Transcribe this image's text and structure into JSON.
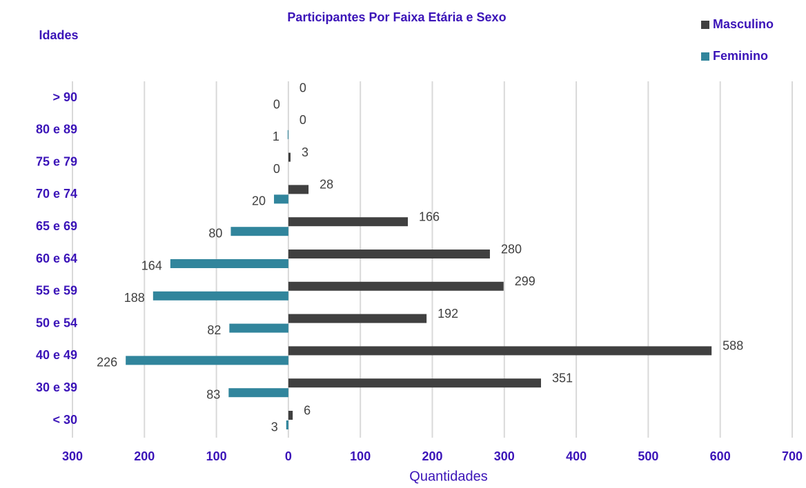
{
  "chart_data": {
    "type": "bar",
    "orientation": "horizontal",
    "title": "Participantes Por Faixa Etária e Sexo",
    "y_label": "Idades",
    "x_label": "Quantidades",
    "categories": [
      "> 90",
      "80 e 89",
      "75 e 79",
      "70 e 74",
      "65 e 69",
      "60 e 64",
      "55 e 59",
      "50 e 54",
      "40 e 49",
      "30 e 39",
      "< 30"
    ],
    "series": [
      {
        "name": "Masculino",
        "color": "#404040",
        "values": [
          0,
          0,
          3,
          28,
          166,
          280,
          299,
          192,
          588,
          351,
          6
        ]
      },
      {
        "name": "Feminino",
        "color": "#31859c",
        "mirrored": true,
        "values": [
          0,
          1,
          0,
          20,
          80,
          164,
          188,
          82,
          226,
          83,
          3
        ]
      }
    ],
    "xlim": [
      -300,
      700
    ],
    "xticks": [
      {
        "value": -300,
        "label": "300"
      },
      {
        "value": -200,
        "label": "200"
      },
      {
        "value": -100,
        "label": "100"
      },
      0,
      100,
      200,
      300,
      400,
      500,
      600,
      700
    ],
    "grid": true,
    "legend": "top-right"
  }
}
